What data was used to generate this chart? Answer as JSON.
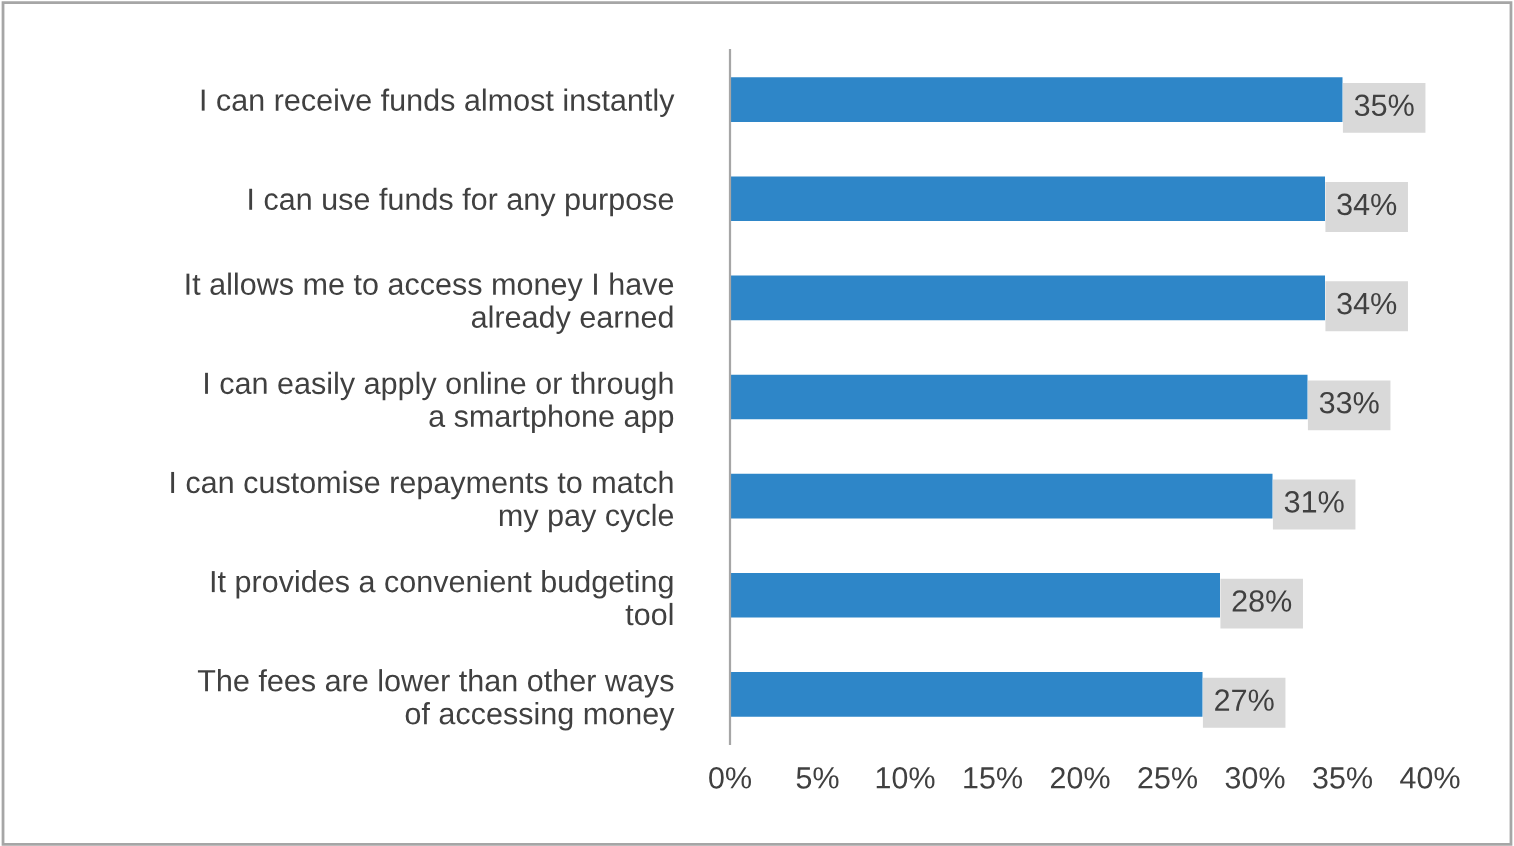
{
  "chart_data": {
    "type": "bar",
    "orientation": "horizontal",
    "categories": [
      "I can receive funds almost instantly",
      "I can use funds for any purpose",
      "It allows me to access money I have already earned",
      "I can easily apply online or through a smartphone app",
      "I can customise repayments to match my pay cycle",
      "It provides a convenient budgeting tool",
      "The fees are lower than other ways of accessing money"
    ],
    "values": [
      35,
      34,
      34,
      33,
      31,
      28,
      27
    ],
    "color": "#2e86c8",
    "value_labels": [
      "35%",
      "34%",
      "34%",
      "33%",
      "31%",
      "28%",
      "27%"
    ],
    "xlim": [
      0,
      40
    ],
    "xticks": [
      {
        "value": 0,
        "label": "0%"
      },
      {
        "value": 5,
        "label": "5%"
      },
      {
        "value": 10,
        "label": "10%"
      },
      {
        "value": 15,
        "label": "15%"
      },
      {
        "value": 20,
        "label": "20%"
      },
      {
        "value": 25,
        "label": "25%"
      },
      {
        "value": 30,
        "label": "30%"
      },
      {
        "value": 35,
        "label": "35%"
      },
      {
        "value": 40,
        "label": "40%"
      }
    ],
    "grid": false,
    "legend": false
  }
}
